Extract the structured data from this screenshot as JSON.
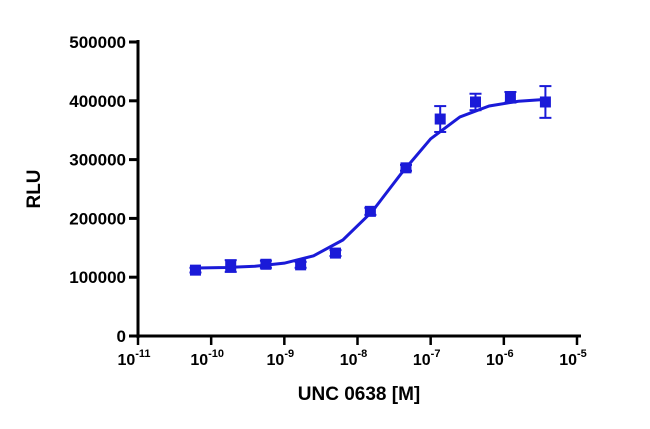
{
  "chart_data": {
    "type": "scatter",
    "xlabel": "UNC 0638 [M]",
    "ylabel": "RLU",
    "xscale": "log",
    "color": "#1a1ad8",
    "series": [
      {
        "color": "#1a1ad8",
        "x": [
          6.1e-11,
          1.85e-10,
          5.6e-10,
          1.67e-09,
          5e-09,
          1.5e-08,
          4.6e-08,
          1.35e-07,
          4.1e-07,
          1.23e-06,
          3.7e-06
        ],
        "values": [
          112000,
          119000,
          122000,
          121000,
          141000,
          212000,
          286000,
          369000,
          398000,
          406000,
          398000
        ],
        "errors": [
          4000,
          10000,
          6000,
          5000,
          5000,
          6000,
          5000,
          22000,
          14000,
          9000,
          27000
        ]
      }
    ],
    "fit": {
      "x": [
        6.31e-11,
        1.585e-10,
        3.98e-10,
        1e-09,
        2.51e-09,
        6.31e-09,
        1.585e-08,
        3.98e-08,
        1e-07,
        2.51e-07,
        6.31e-07,
        1.585e-06,
        3.98e-06
      ],
      "values": [
        115600,
        116400,
        118600,
        123900,
        136400,
        163300,
        211700,
        276600,
        335300,
        372600,
        391200,
        399300,
        402700
      ]
    },
    "xlim": [
      1e-11,
      1e-05
    ],
    "xticks": [
      {
        "value": 1e-11,
        "label": "10",
        "exponent": "-11"
      },
      {
        "value": 1e-10,
        "label": "10",
        "exponent": "-10"
      },
      {
        "value": 1e-09,
        "label": "10",
        "exponent": "-9"
      },
      {
        "value": 1e-08,
        "label": "10",
        "exponent": "-8"
      },
      {
        "value": 1e-07,
        "label": "10",
        "exponent": "-7"
      },
      {
        "value": 1e-06,
        "label": "10",
        "exponent": "-6"
      },
      {
        "value": 1e-05,
        "label": "10",
        "exponent": "-5"
      }
    ],
    "ylim": [
      0,
      500000
    ],
    "yticks": [
      0,
      100000,
      200000,
      300000,
      400000,
      500000
    ]
  }
}
